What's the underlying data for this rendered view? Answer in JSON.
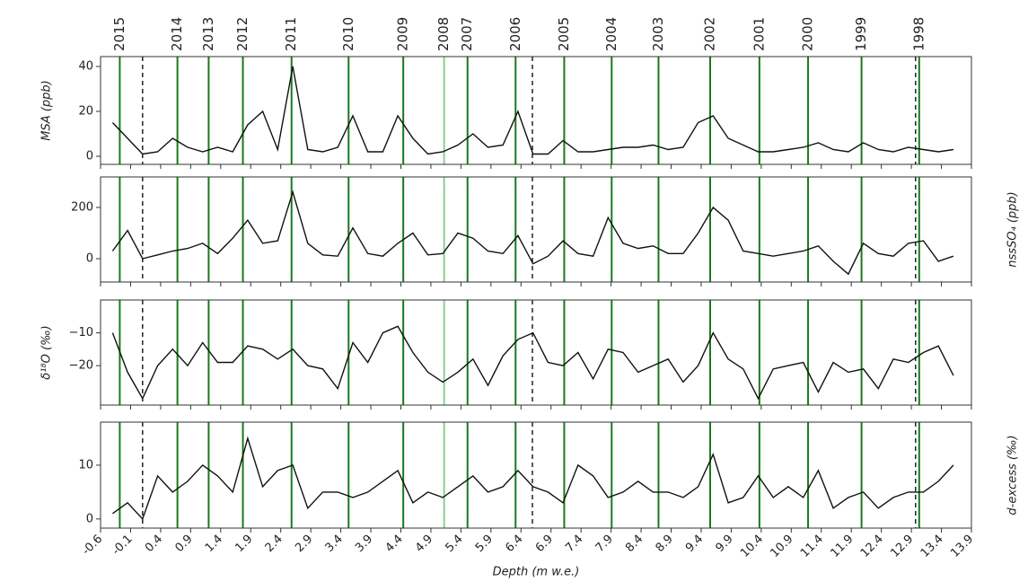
{
  "chart_data": [
    {
      "type": "line",
      "ylabel": "MSA (ppb)",
      "ylabel_side": "left",
      "color": "#111111",
      "x": [
        -0.4,
        -0.15,
        0.1,
        0.35,
        0.6,
        0.85,
        1.1,
        1.35,
        1.6,
        1.85,
        2.1,
        2.35,
        2.6,
        2.85,
        3.1,
        3.35,
        3.6,
        3.85,
        4.1,
        4.35,
        4.6,
        4.85,
        5.1,
        5.35,
        5.6,
        5.85,
        6.1,
        6.35,
        6.6,
        6.85,
        7.1,
        7.35,
        7.6,
        7.85,
        8.1,
        8.35,
        8.6,
        8.85,
        9.1,
        9.35,
        9.6,
        9.85,
        10.1,
        10.35,
        10.6,
        10.85,
        11.1,
        11.35,
        11.6,
        11.85,
        12.1,
        12.35,
        12.6,
        12.85,
        13.1,
        13.35,
        13.6
      ],
      "values": [
        15,
        8,
        1,
        2,
        8,
        4,
        2,
        4,
        2,
        14,
        20,
        3,
        40,
        3,
        2,
        4,
        18,
        2,
        2,
        18,
        8,
        1,
        2,
        5,
        10,
        4,
        5,
        20,
        1,
        1,
        7,
        2,
        2,
        3,
        4,
        4,
        5,
        3,
        4,
        15,
        18,
        8,
        5,
        2,
        2,
        3,
        4,
        6,
        3,
        2,
        6,
        3,
        2,
        4,
        3,
        2,
        3
      ],
      "ylim": [
        -3.6,
        44.4
      ],
      "yticks": [
        0,
        20,
        40
      ],
      "vlines": [
        {
          "label": "2015",
          "x": -0.28,
          "color": "#1a7a1a"
        },
        {
          "label": "2014",
          "x": 0.68,
          "color": "#1a7a1a"
        },
        {
          "label": "2013",
          "x": 1.2,
          "color": "#1a7a1a"
        },
        {
          "label": "2012",
          "x": 1.77,
          "color": "#1a7a1a"
        },
        {
          "label": "2011",
          "x": 2.58,
          "color": "#1a7a1a"
        },
        {
          "label": "2010",
          "x": 3.53,
          "color": "#1a7a1a"
        },
        {
          "label": "2009",
          "x": 4.44,
          "color": "#1a7a1a"
        },
        {
          "label": "2008",
          "x": 5.12,
          "color": "#8fcf8f"
        },
        {
          "label": "2007",
          "x": 5.51,
          "color": "#1a7a1a"
        },
        {
          "label": "2006",
          "x": 6.31,
          "color": "#1a7a1a"
        },
        {
          "label": "2005",
          "x": 7.12,
          "color": "#1a7a1a"
        },
        {
          "label": "2004",
          "x": 7.91,
          "color": "#1a7a1a"
        },
        {
          "label": "2003",
          "x": 8.69,
          "color": "#1a7a1a"
        },
        {
          "label": "2002",
          "x": 9.55,
          "color": "#1a7a1a"
        },
        {
          "label": "2001",
          "x": 10.37,
          "color": "#1a7a1a"
        },
        {
          "label": "2000",
          "x": 11.18,
          "color": "#1a7a1a"
        },
        {
          "label": "1999",
          "x": 12.07,
          "color": "#1a7a1a"
        },
        {
          "label": "1998",
          "x": 13.03,
          "color": "#1a7a1a"
        }
      ],
      "dashed_x": [
        0.1,
        6.59,
        12.97
      ]
    },
    {
      "type": "line",
      "ylabel": "nssSO₄ (ppb)",
      "ylabel_side": "right",
      "color": "#111111",
      "x": [
        -0.4,
        -0.15,
        0.1,
        0.35,
        0.6,
        0.85,
        1.1,
        1.35,
        1.6,
        1.85,
        2.1,
        2.35,
        2.6,
        2.85,
        3.1,
        3.35,
        3.6,
        3.85,
        4.1,
        4.35,
        4.6,
        4.85,
        5.1,
        5.35,
        5.6,
        5.85,
        6.1,
        6.35,
        6.6,
        6.85,
        7.1,
        7.35,
        7.6,
        7.85,
        8.1,
        8.35,
        8.6,
        8.85,
        9.1,
        9.35,
        9.6,
        9.85,
        10.1,
        10.35,
        10.6,
        10.85,
        11.1,
        11.35,
        11.6,
        11.85,
        12.1,
        12.35,
        12.6,
        12.85,
        13.1,
        13.35,
        13.6
      ],
      "values": [
        30,
        110,
        0,
        15,
        30,
        40,
        60,
        20,
        80,
        150,
        60,
        70,
        260,
        60,
        15,
        10,
        120,
        20,
        10,
        60,
        100,
        15,
        20,
        100,
        80,
        30,
        20,
        90,
        -20,
        10,
        70,
        20,
        10,
        160,
        60,
        40,
        50,
        20,
        20,
        100,
        200,
        150,
        30,
        20,
        10,
        20,
        30,
        50,
        -10,
        -60,
        60,
        20,
        10,
        60,
        70,
        -10,
        10
      ],
      "ylim": [
        -91,
        319
      ],
      "yticks": [
        0,
        200
      ]
    },
    {
      "type": "line",
      "ylabel": "δ¹⁸O (‰)",
      "ylabel_side": "left",
      "color": "#111111",
      "x": [
        -0.4,
        -0.15,
        0.1,
        0.35,
        0.6,
        0.85,
        1.1,
        1.35,
        1.6,
        1.85,
        2.1,
        2.35,
        2.6,
        2.85,
        3.1,
        3.35,
        3.6,
        3.85,
        4.1,
        4.35,
        4.6,
        4.85,
        5.1,
        5.35,
        5.6,
        5.85,
        6.1,
        6.35,
        6.6,
        6.85,
        7.1,
        7.35,
        7.6,
        7.85,
        8.1,
        8.35,
        8.6,
        8.85,
        9.1,
        9.35,
        9.6,
        9.85,
        10.1,
        10.35,
        10.6,
        10.85,
        11.1,
        11.35,
        11.6,
        11.85,
        12.1,
        12.35,
        12.6,
        12.85,
        13.1,
        13.35,
        13.6
      ],
      "values": [
        -10,
        -22,
        -30,
        -20,
        -15,
        -20,
        -13,
        -19,
        -19,
        -14,
        -15,
        -18,
        -15,
        -20,
        -21,
        -27,
        -13,
        -19,
        -10,
        -8,
        -16,
        -22,
        -25,
        -22,
        -18,
        -26,
        -17,
        -12,
        -10,
        -19,
        -20,
        -16,
        -24,
        -15,
        -16,
        -22,
        -20,
        -18,
        -25,
        -20,
        -10,
        -18,
        -21,
        -30,
        -21,
        -20,
        -19,
        -28,
        -19,
        -22,
        -21,
        -27,
        -18,
        -19,
        -16,
        -14,
        -23
      ],
      "ylim": [
        -32,
        0
      ],
      "yticks": [
        {
          "value": -20,
          "label": "−20"
        },
        {
          "value": -10,
          "label": "−10"
        }
      ]
    },
    {
      "type": "line",
      "ylabel": "d-excess (‰)",
      "ylabel_side": "right",
      "color": "#111111",
      "xlabel": "Depth (m w.e.)",
      "x": [
        -0.4,
        -0.15,
        0.1,
        0.35,
        0.6,
        0.85,
        1.1,
        1.35,
        1.6,
        1.85,
        2.1,
        2.35,
        2.6,
        2.85,
        3.1,
        3.35,
        3.6,
        3.85,
        4.1,
        4.35,
        4.6,
        4.85,
        5.1,
        5.35,
        5.6,
        5.85,
        6.1,
        6.35,
        6.6,
        6.85,
        7.1,
        7.35,
        7.6,
        7.85,
        8.1,
        8.35,
        8.6,
        8.85,
        9.1,
        9.35,
        9.6,
        9.85,
        10.1,
        10.35,
        10.6,
        10.85,
        11.1,
        11.35,
        11.6,
        11.85,
        12.1,
        12.35,
        12.6,
        12.85,
        13.1,
        13.35,
        13.6
      ],
      "values": [
        1,
        3,
        0,
        8,
        5,
        7,
        10,
        8,
        5,
        15,
        6,
        9,
        10,
        2,
        5,
        5,
        4,
        5,
        7,
        9,
        3,
        5,
        4,
        6,
        8,
        5,
        6,
        9,
        6,
        5,
        3,
        10,
        8,
        4,
        5,
        7,
        5,
        5,
        4,
        6,
        12,
        3,
        4,
        8,
        4,
        6,
        4,
        9,
        2,
        4,
        5,
        2,
        4,
        5,
        5,
        7,
        10
      ],
      "ylim": [
        -1.7,
        18
      ],
      "yticks": [
        0,
        10
      ],
      "xlim": [
        -0.6,
        13.9
      ],
      "xticks": [
        {
          "value": -0.6,
          "label": "-0.6"
        },
        {
          "value": -0.1,
          "label": "-0.1"
        },
        0.4,
        0.9,
        1.4,
        1.9,
        2.4,
        2.9,
        3.4,
        3.9,
        4.4,
        4.9,
        5.4,
        5.9,
        6.4,
        6.9,
        7.4,
        7.9,
        8.4,
        8.9,
        9.4,
        9.9,
        10.4,
        10.9,
        11.4,
        11.9,
        12.4,
        12.9,
        13.4,
        13.9
      ]
    }
  ]
}
